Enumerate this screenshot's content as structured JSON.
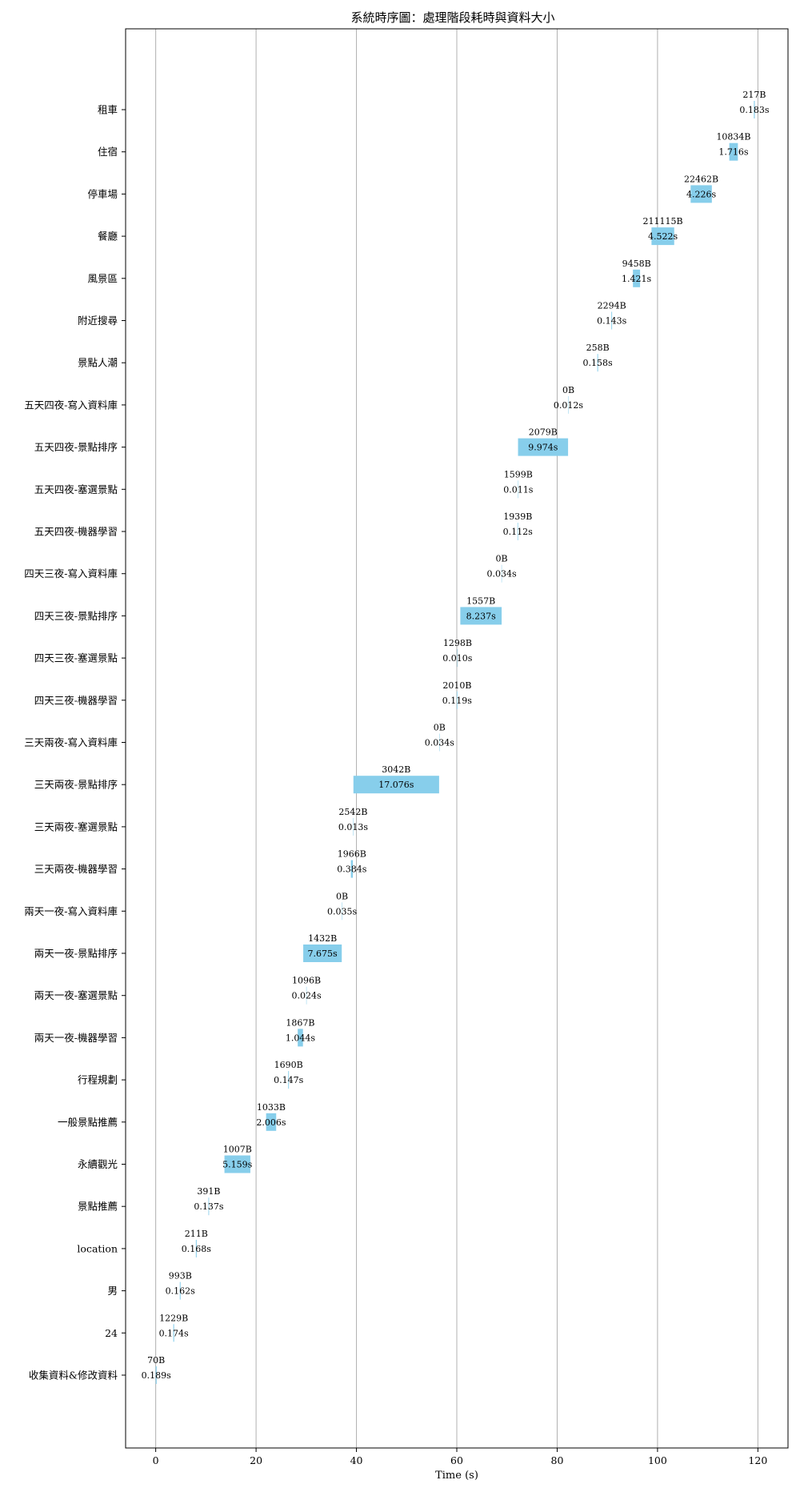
{
  "chart_data": {
    "type": "bar",
    "orientation": "horizontal-gantt",
    "title": "系統時序圖：處理階段耗時與資料大小",
    "xlabel": "Time (s)",
    "ylabel": "",
    "xlim": [
      -6,
      126
    ],
    "xticks": [
      0,
      20,
      40,
      60,
      80,
      100,
      120
    ],
    "grid": "x",
    "bar_color": "#87ceeb",
    "tasks": [
      {
        "label": "收集資料&修改資料",
        "start": 0.0,
        "duration": 0.189,
        "duration_label": "0.189s",
        "size_label": "70B"
      },
      {
        "label": "24",
        "start": 3.5,
        "duration": 0.174,
        "duration_label": "0.174s",
        "size_label": "1229B"
      },
      {
        "label": "男",
        "start": 4.8,
        "duration": 0.162,
        "duration_label": "0.162s",
        "size_label": "993B"
      },
      {
        "label": "location",
        "start": 8.0,
        "duration": 0.168,
        "duration_label": "0.168s",
        "size_label": "211B"
      },
      {
        "label": "景點推薦",
        "start": 10.5,
        "duration": 0.137,
        "duration_label": "0.137s",
        "size_label": "391B"
      },
      {
        "label": "永續觀光",
        "start": 13.7,
        "duration": 5.159,
        "duration_label": "5.159s",
        "size_label": "1007B"
      },
      {
        "label": "一般景點推薦",
        "start": 22.0,
        "duration": 2.006,
        "duration_label": "2.006s",
        "size_label": "1033B"
      },
      {
        "label": "行程規劃",
        "start": 26.4,
        "duration": 0.147,
        "duration_label": "0.147s",
        "size_label": "1690B"
      },
      {
        "label": "兩天一夜-機器學習",
        "start": 28.3,
        "duration": 1.044,
        "duration_label": "1.044s",
        "size_label": "1867B"
      },
      {
        "label": "兩天一夜-塞選景點",
        "start": 30.0,
        "duration": 0.024,
        "duration_label": "0.024s",
        "size_label": "1096B"
      },
      {
        "label": "兩天一夜-景點排序",
        "start": 29.4,
        "duration": 7.675,
        "duration_label": "7.675s",
        "size_label": "1432B"
      },
      {
        "label": "兩天一夜-寫入資料庫",
        "start": 37.1,
        "duration": 0.035,
        "duration_label": "0.035s",
        "size_label": "0B"
      },
      {
        "label": "三天兩夜-機器學習",
        "start": 38.9,
        "duration": 0.384,
        "duration_label": "0.384s",
        "size_label": "1966B"
      },
      {
        "label": "三天兩夜-塞選景點",
        "start": 39.3,
        "duration": 0.013,
        "duration_label": "0.013s",
        "size_label": "2542B"
      },
      {
        "label": "三天兩夜-景點排序",
        "start": 39.4,
        "duration": 17.076,
        "duration_label": "17.076s",
        "size_label": "3042B"
      },
      {
        "label": "三天兩夜-寫入資料庫",
        "start": 56.5,
        "duration": 0.034,
        "duration_label": "0.034s",
        "size_label": "0B"
      },
      {
        "label": "四天三夜-機器學習",
        "start": 60.0,
        "duration": 0.119,
        "duration_label": "0.119s",
        "size_label": "2010B"
      },
      {
        "label": "四天三夜-塞選景點",
        "start": 60.1,
        "duration": 0.01,
        "duration_label": "0.010s",
        "size_label": "1298B"
      },
      {
        "label": "四天三夜-景點排序",
        "start": 60.7,
        "duration": 8.237,
        "duration_label": "8.237s",
        "size_label": "1557B"
      },
      {
        "label": "四天三夜-寫入資料庫",
        "start": 68.9,
        "duration": 0.034,
        "duration_label": "0.034s",
        "size_label": "0B"
      },
      {
        "label": "五天四夜-機器學習",
        "start": 72.1,
        "duration": 0.112,
        "duration_label": "0.112s",
        "size_label": "1939B"
      },
      {
        "label": "五天四夜-塞選景點",
        "start": 72.2,
        "duration": 0.011,
        "duration_label": "0.011s",
        "size_label": "1599B"
      },
      {
        "label": "五天四夜-景點排序",
        "start": 72.2,
        "duration": 9.974,
        "duration_label": "9.974s",
        "size_label": "2079B"
      },
      {
        "label": "五天四夜-寫入資料庫",
        "start": 82.2,
        "duration": 0.012,
        "duration_label": "0.012s",
        "size_label": "0B"
      },
      {
        "label": "景點人潮",
        "start": 88.0,
        "duration": 0.158,
        "duration_label": "0.158s",
        "size_label": "258B"
      },
      {
        "label": "附近搜尋",
        "start": 90.8,
        "duration": 0.143,
        "duration_label": "0.143s",
        "size_label": "2294B"
      },
      {
        "label": "風景區",
        "start": 95.1,
        "duration": 1.421,
        "duration_label": "1.421s",
        "size_label": "9458B"
      },
      {
        "label": "餐廳",
        "start": 98.8,
        "duration": 4.522,
        "duration_label": "4.522s",
        "size_label": "211115B"
      },
      {
        "label": "停車場",
        "start": 106.6,
        "duration": 4.226,
        "duration_label": "4.226s",
        "size_label": "22462B"
      },
      {
        "label": "住宿",
        "start": 114.3,
        "duration": 1.716,
        "duration_label": "1.716s",
        "size_label": "10834B"
      },
      {
        "label": "租車",
        "start": 119.2,
        "duration": 0.183,
        "duration_label": "0.183s",
        "size_label": "217B"
      }
    ]
  }
}
